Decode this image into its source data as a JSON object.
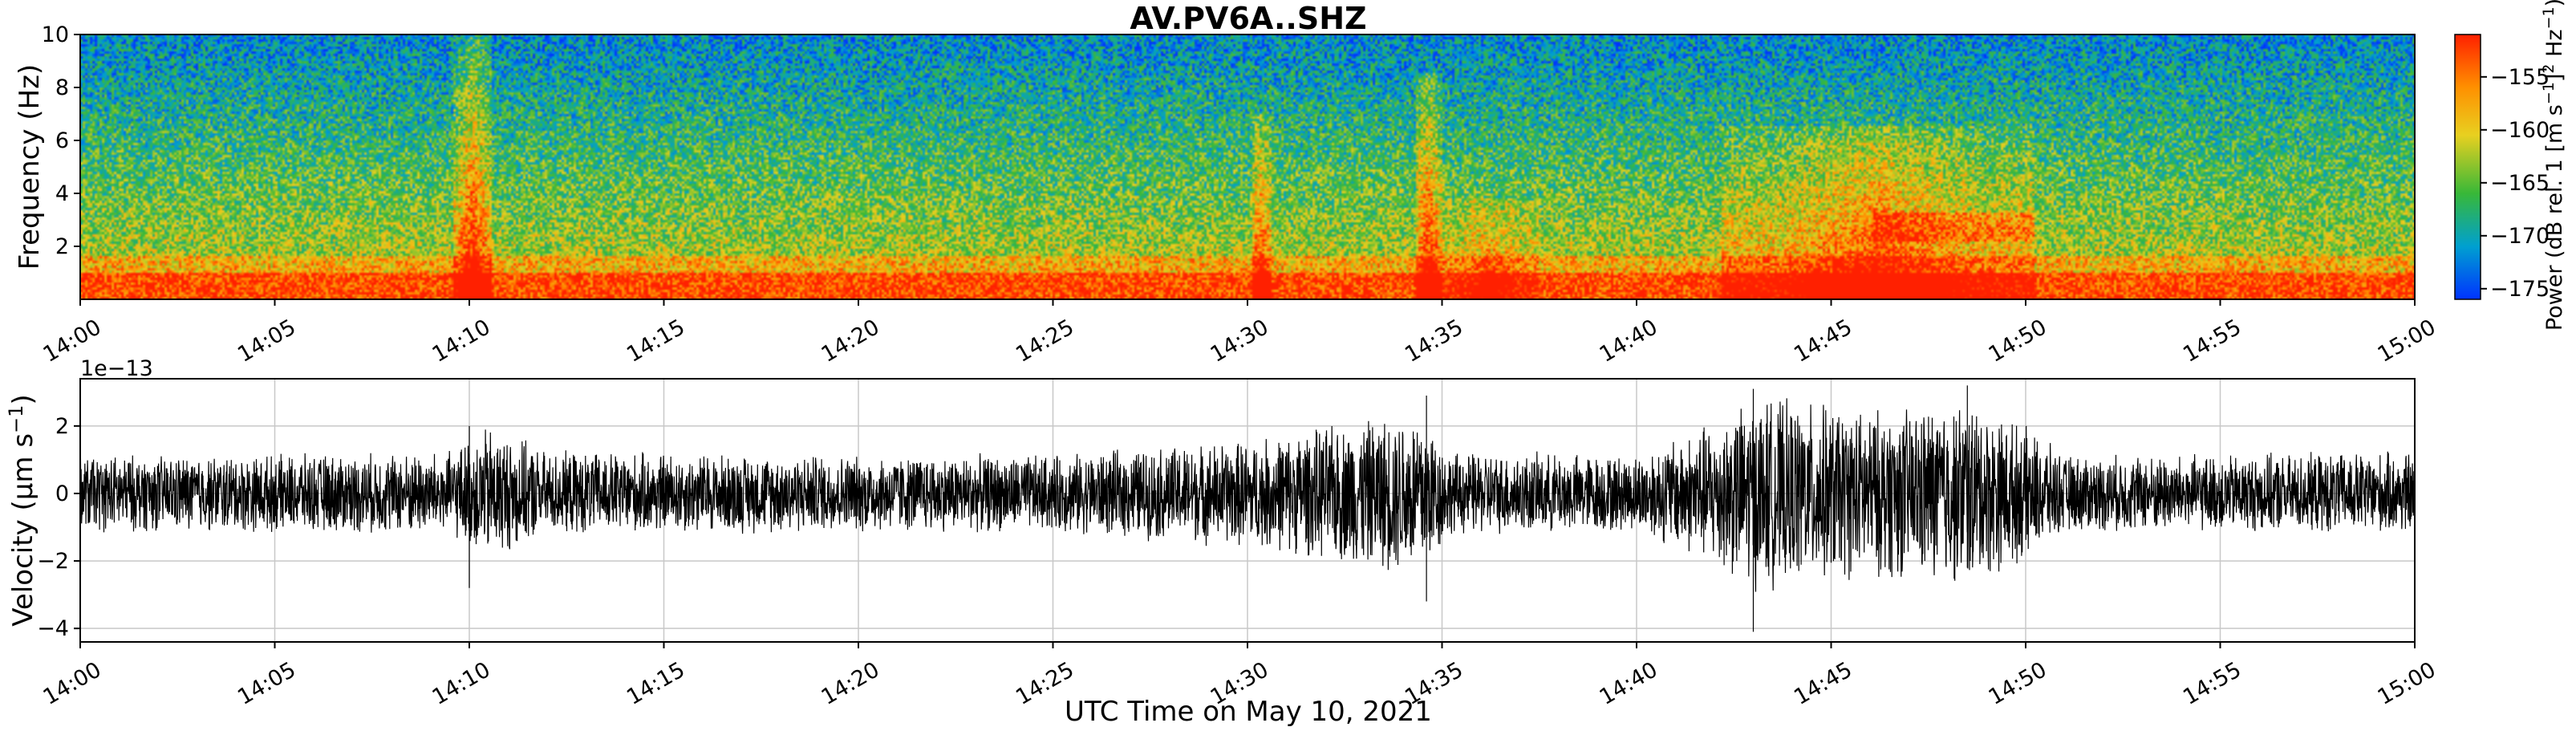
{
  "chart_data": [
    {
      "type": "heatmap",
      "title": "AV.PV6A..SHZ",
      "xlabel": "",
      "ylabel": "Frequency (Hz)",
      "x_ticks": [
        "14:00",
        "14:05",
        "14:10",
        "14:15",
        "14:20",
        "14:25",
        "14:30",
        "14:35",
        "14:40",
        "14:45",
        "14:50",
        "14:55",
        "15:00"
      ],
      "xlim_minutes": [
        0,
        60
      ],
      "y_ticks": [
        "2",
        "4",
        "6",
        "8",
        "10"
      ],
      "ylim": [
        0,
        10
      ],
      "colorbar": {
        "label": "Power (dB rel. 1 [m s⁻¹]² Hz⁻¹)",
        "label_main": "Power (dB rel. 1 [m s",
        "label_sup1": "−1",
        "label_mid": "]",
        "label_sup2": "2",
        "label_mid2": " Hz",
        "label_sup3": "−1",
        "label_end": ")",
        "range": [
          -176,
          -151
        ],
        "ticks": [
          "−155",
          "−160",
          "−165",
          "−170",
          "−175"
        ],
        "tick_values": [
          -155,
          -160,
          -165,
          -170,
          -175
        ],
        "colors": [
          "#0033ff",
          "#00a0d0",
          "#38b838",
          "#e8d020",
          "#ff9000",
          "#ff2000"
        ]
      },
      "events": [
        {
          "start_min": 9.6,
          "end_min": 10.6,
          "fmax": 10,
          "strength": 1.0
        },
        {
          "start_min": 30.1,
          "end_min": 30.6,
          "fmax": 7,
          "strength": 0.85
        },
        {
          "start_min": 34.3,
          "end_min": 35.0,
          "fmax": 8.5,
          "strength": 0.95
        },
        {
          "start_min": 35.0,
          "end_min": 37.5,
          "fmax": 3.8,
          "strength": 0.55
        },
        {
          "start_min": 42.2,
          "end_min": 50.2,
          "fmax": 6.5,
          "strength": 0.85
        }
      ],
      "band_strong_fmax": 1.0
    },
    {
      "type": "line",
      "ylabel": "Velocity (µm s⁻¹)",
      "ylabel_main": "Velocity (µm s",
      "ylabel_sup": "−1",
      "ylabel_end": ")",
      "xlabel": "UTC Time on May 10, 2021",
      "offset_text": "1e−13",
      "x_ticks": [
        "14:00",
        "14:05",
        "14:10",
        "14:15",
        "14:20",
        "14:25",
        "14:30",
        "14:35",
        "14:40",
        "14:45",
        "14:50",
        "14:55",
        "15:00"
      ],
      "xlim_minutes": [
        0,
        60
      ],
      "y_ticks": [
        "2",
        "0",
        "−2",
        "−4"
      ],
      "y_tick_values": [
        2,
        0,
        -2,
        -4
      ],
      "ylim": [
        -4.4,
        3.4
      ],
      "grid": true,
      "series": [
        {
          "color": "#000000",
          "envelope_minutes": [
            0,
            5,
            9.5,
            10.5,
            12,
            20,
            25,
            30.3,
            34.5,
            35.2,
            40,
            42.2,
            43,
            46,
            48.5,
            50.1,
            51,
            55,
            60
          ],
          "envelope_amplitude": [
            1.2,
            1.2,
            1.3,
            2.1,
            1.3,
            1.2,
            1.2,
            1.7,
            2.6,
            1.3,
            1.2,
            2.4,
            3.0,
            2.6,
            2.9,
            2.0,
            1.2,
            1.2,
            1.3
          ],
          "peak_max": 3.2,
          "peak_min": -4.1
        }
      ]
    }
  ]
}
